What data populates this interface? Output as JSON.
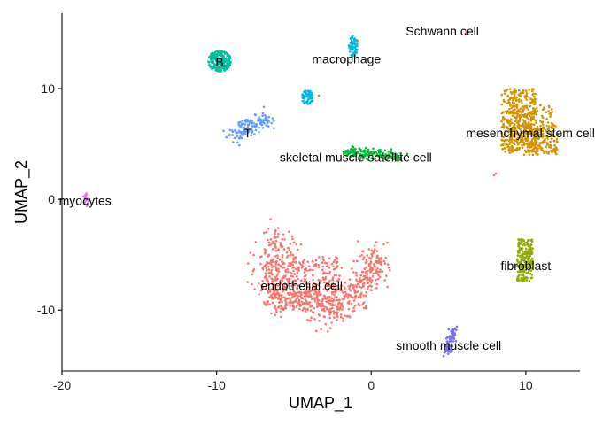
{
  "chart_data": {
    "type": "scatter",
    "title": "",
    "xlabel": "UMAP_1",
    "ylabel": "UMAP_2",
    "xlim": [
      -20,
      13.5
    ],
    "ylim": [
      -15.5,
      16.8
    ],
    "x_ticks": [
      -20,
      -10,
      0,
      10
    ],
    "x_tick_labels": [
      "-20",
      "-10",
      "0",
      "10"
    ],
    "y_ticks": [
      -10,
      0,
      10
    ],
    "y_tick_labels": [
      "-10",
      "0",
      "10"
    ],
    "grid": false,
    "legend": "none",
    "clusters": [
      {
        "label": "endothelial cell",
        "color": "#F8766D",
        "label_pos": [
          -4.5,
          -7.8
        ]
      },
      {
        "label": "mesenchymal stem cell",
        "color": "#D39200",
        "label_pos": [
          10.3,
          6.0
        ]
      },
      {
        "label": "fibroblast",
        "color": "#93AA00",
        "label_pos": [
          10.0,
          -6.0
        ]
      },
      {
        "label": "skeletal muscle satellite cell",
        "color": "#00BA38",
        "label_pos": [
          -1.0,
          3.8
        ]
      },
      {
        "label": "B",
        "color": "#00C19F",
        "label_pos": [
          -9.8,
          12.4
        ]
      },
      {
        "label": "macrophage",
        "color": "#00B9E3",
        "label_pos": [
          -1.6,
          12.7
        ]
      },
      {
        "label": "T",
        "color": "#619CFF",
        "label_pos": [
          -8.0,
          6.0
        ]
      },
      {
        "label": "smooth muscle cell",
        "color": "#7570F0",
        "label_pos": [
          5.0,
          -13.2
        ]
      },
      {
        "label": "myocytes",
        "color": "#DB72FB",
        "label_pos": [
          -18.5,
          -0.1
        ]
      },
      {
        "label": "Schwann cell",
        "color": "#FF61C3",
        "label_pos": [
          4.6,
          15.2
        ]
      }
    ]
  }
}
